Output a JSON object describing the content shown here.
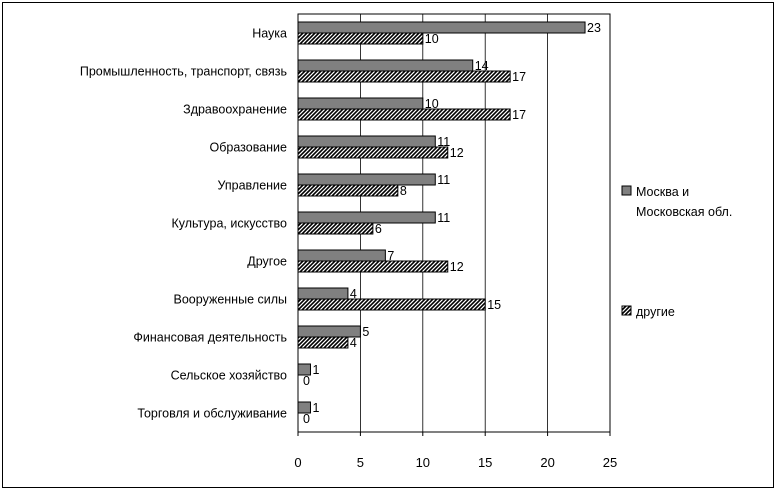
{
  "chart_data": {
    "type": "bar",
    "orientation": "horizontal",
    "categories": [
      "Наука",
      "Промышленность, транспорт, связь",
      "Здравоохранение",
      "Образование",
      "Управление",
      "Культура, искусство",
      "Другое",
      "Вооруженные силы",
      "Финансовая деятельность",
      "Сельское хозяйство",
      "Торговля и обслуживание"
    ],
    "series": [
      {
        "name": "Москва и Московская обл.",
        "legend_lines": [
          "Москва и",
          "Московская обл."
        ],
        "values": [
          23,
          14,
          10,
          11,
          11,
          11,
          7,
          4,
          5,
          1,
          1
        ],
        "style": "solid",
        "color": "#808080"
      },
      {
        "name": "другие",
        "legend_lines": [
          "другие"
        ],
        "values": [
          10,
          17,
          17,
          12,
          8,
          6,
          12,
          15,
          4,
          0,
          0
        ],
        "style": "hatched",
        "color": "#000000"
      }
    ],
    "xlim": [
      0,
      25
    ],
    "xticks": [
      0,
      5,
      10,
      15,
      20,
      25
    ],
    "grid": true,
    "legend_position": "right",
    "title": "",
    "xlabel": "",
    "ylabel": ""
  }
}
